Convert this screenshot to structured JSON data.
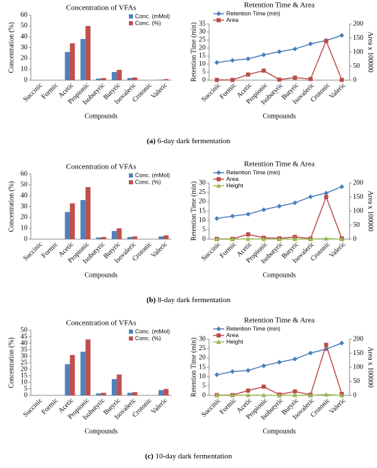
{
  "chart_data": [
    {
      "type": "bar",
      "title": "Concentration of VFAs",
      "y_label": "Concentration (%)",
      "x_label": "Compounds",
      "categories": [
        "Succinic",
        "Formic",
        "Acetic",
        "Propionic",
        "Isobutyric",
        "Butyric",
        "Isovaleric",
        "Crotonic",
        "Valeric"
      ],
      "ylim": [
        0,
        60
      ],
      "yticks": [
        0,
        10,
        20,
        30,
        40,
        50,
        60
      ],
      "series": [
        {
          "name": "Conc. (mMol)",
          "color": "#4f81bd",
          "values": [
            0,
            0,
            26,
            38,
            1.5,
            7.5,
            2,
            0,
            0.5
          ]
        },
        {
          "name": "Conc. (%)",
          "color": "#c0504d",
          "values": [
            0,
            0,
            34,
            50,
            2,
            9.5,
            2.5,
            0,
            1
          ]
        }
      ]
    },
    {
      "type": "line",
      "title": "Retention Time & Area",
      "y_label": "Retention Time (min)",
      "y2_label": "Area x 100000",
      "x_label": "Compounds",
      "categories": [
        "Succinic",
        "Formic",
        "Acetic",
        "Propionic",
        "Isobutyric",
        "Butyric",
        "Isovaleric",
        "Crotonic",
        "Valeric"
      ],
      "ylim": [
        0,
        35
      ],
      "yticks": [
        0,
        5,
        10,
        15,
        20,
        25,
        30,
        35
      ],
      "y2lim": [
        0,
        200
      ],
      "y2ticks": [
        0,
        50,
        100,
        150,
        200
      ],
      "series": [
        {
          "name": "Retention Time (min)",
          "color": "#4a7ebb",
          "marker": "diamond",
          "values": [
            11,
            12.3,
            13.3,
            15.8,
            17.7,
            19.4,
            22.6,
            24.7,
            27.9
          ]
        },
        {
          "name": "Area",
          "color": "#be4b48",
          "marker": "square",
          "axis": "y2",
          "values": [
            1,
            1,
            20,
            34,
            2,
            9,
            4,
            140,
            1
          ]
        }
      ]
    },
    {
      "type": "bar",
      "title": "Concentration of VFAs",
      "y_label": "Concentration (%)",
      "x_label": "Compounds",
      "categories": [
        "Succinic",
        "Formic",
        "Acetic",
        "Propionic",
        "Isobutyric",
        "Butyric",
        "Isovaleric",
        "Crotonic",
        "Valeric"
      ],
      "ylim": [
        0,
        60
      ],
      "yticks": [
        0,
        10,
        20,
        30,
        40,
        50,
        60
      ],
      "series": [
        {
          "name": "Conc. (mMol)",
          "color": "#4f81bd",
          "values": [
            0,
            0,
            25,
            36,
            1.5,
            7.5,
            2,
            0,
            2.5
          ]
        },
        {
          "name": "Conc. (%)",
          "color": "#c0504d",
          "values": [
            0,
            0,
            33,
            48,
            2,
            10,
            2.5,
            0,
            3.5
          ]
        }
      ]
    },
    {
      "type": "line",
      "title": "Retention Time & Area",
      "y_label": "Retention Time (min)",
      "y2_label": "Area x 100000",
      "x_label": "Compounds",
      "categories": [
        "Succinic",
        "Formic",
        "Acetic",
        "Propionic",
        "Isobutyric",
        "Butyric",
        "Isovaleric",
        "Crotonic",
        "Valeric"
      ],
      "ylim": [
        0,
        30
      ],
      "yticks": [
        0,
        5,
        10,
        15,
        20,
        25,
        30
      ],
      "y2lim": [
        0,
        200
      ],
      "y2ticks": [
        0,
        50,
        100,
        150,
        200
      ],
      "series": [
        {
          "name": "Retention Time (min)",
          "color": "#4a7ebb",
          "marker": "diamond",
          "values": [
            11,
            12.3,
            13.3,
            15.7,
            17.6,
            19.4,
            22.6,
            24.6,
            28
          ]
        },
        {
          "name": "Area",
          "color": "#be4b48",
          "marker": "square",
          "axis": "y2",
          "values": [
            1,
            1,
            17,
            5,
            3,
            8,
            2,
            150,
            3
          ]
        },
        {
          "name": "Height",
          "color": "#98b954",
          "marker": "triangle",
          "axis": "y2",
          "values": [
            0,
            0,
            1,
            0.5,
            0,
            0.5,
            0,
            2,
            0
          ]
        }
      ]
    },
    {
      "type": "bar",
      "title": "Concentration of VFAs",
      "y_label": "Concentration (%)",
      "x_label": "Compounds",
      "categories": [
        "Succinic",
        "Formic",
        "Acetic",
        "Propionic",
        "Isobutyric",
        "Butyric",
        "Isovaleric",
        "Crotonic",
        "Valeric"
      ],
      "ylim": [
        0,
        50
      ],
      "yticks": [
        0,
        5,
        10,
        15,
        20,
        25,
        30,
        35,
        40,
        45,
        50
      ],
      "series": [
        {
          "name": "Conc. (mMol)",
          "color": "#4f81bd",
          "values": [
            0,
            0,
            24,
            33.5,
            1.5,
            12.5,
            2,
            0,
            4
          ]
        },
        {
          "name": "Conc. (%)",
          "color": "#c0504d",
          "values": [
            0,
            0,
            31,
            43,
            2,
            16,
            2.5,
            0,
            5
          ]
        }
      ]
    },
    {
      "type": "line",
      "title": "Retention Time & Area",
      "y_label": "Retention Time (min)",
      "y2_label": "Area x 100000",
      "x_label": "Compounds",
      "categories": [
        "Succinic",
        "Formic",
        "Acetic",
        "Propionic",
        "Isobutyric",
        "Butyric",
        "Isovaleric",
        "Crotonic",
        "Valeric"
      ],
      "ylim": [
        0,
        30
      ],
      "yticks": [
        0,
        5,
        10,
        15,
        20,
        25,
        30
      ],
      "y2lim": [
        0,
        200
      ],
      "y2ticks": [
        0,
        50,
        100,
        150,
        200
      ],
      "series": [
        {
          "name": "Retention Time (min)",
          "color": "#4a7ebb",
          "marker": "diamond",
          "values": [
            11,
            12.7,
            13.3,
            15.8,
            17.7,
            19.4,
            22.6,
            24.7,
            27.9
          ]
        },
        {
          "name": "Area",
          "color": "#be4b48",
          "marker": "square",
          "axis": "y2",
          "values": [
            1,
            1,
            17,
            31,
            3,
            14,
            2,
            180,
            5
          ]
        },
        {
          "name": "Height",
          "color": "#98b954",
          "marker": "triangle",
          "axis": "y2",
          "values": [
            0,
            0,
            1,
            1,
            0,
            1,
            0,
            3,
            0
          ]
        }
      ]
    }
  ],
  "captions": [
    {
      "label": "(a)",
      "text": "6-day dark fermentation"
    },
    {
      "label": "(b)",
      "text": "8-day dark fermentation"
    },
    {
      "label": "(c)",
      "text": "10-day dark fermentation"
    }
  ]
}
